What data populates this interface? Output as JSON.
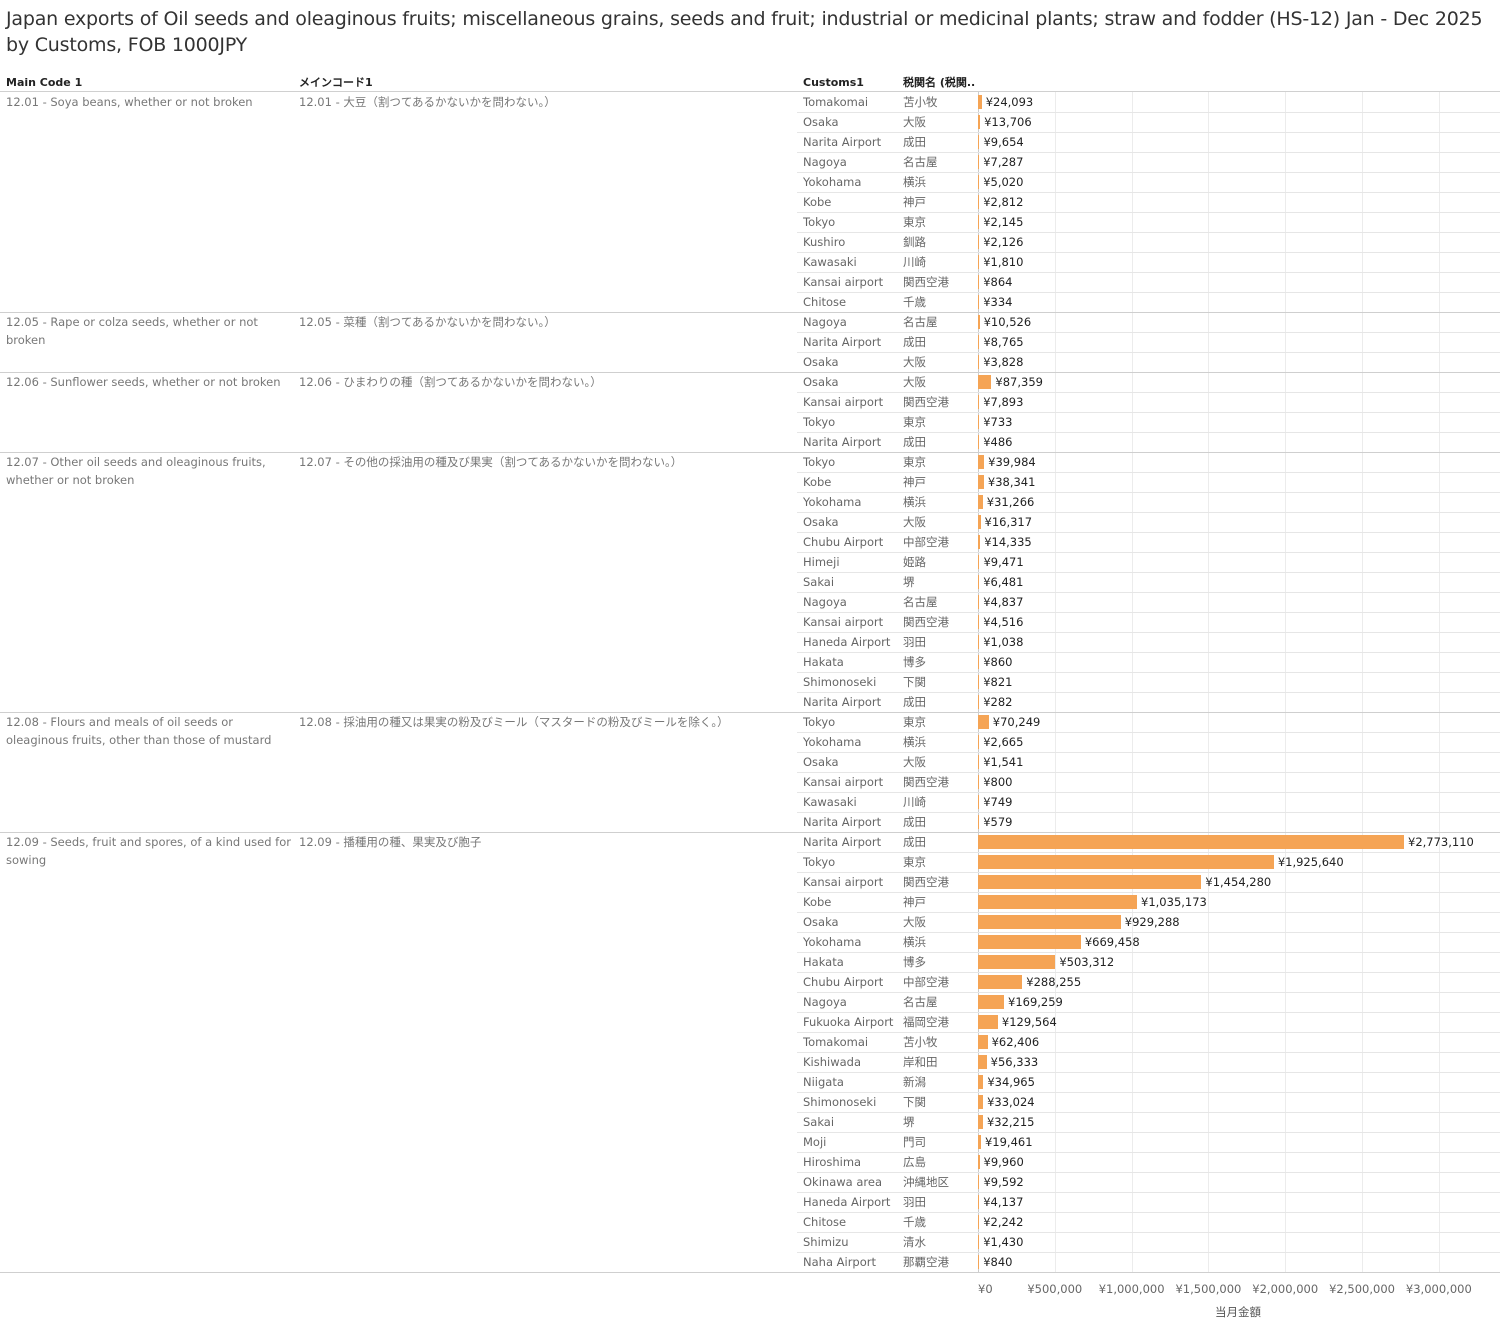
{
  "title": "Japan exports of Oil seeds and oleaginous fruits; miscellaneous grains, seeds and fruit; industrial or medicinal plants; straw and fodder (HS-12) Jan - Dec 2025\nby Customs, FOB 1000JPY",
  "headers": {
    "main_code": "Main Code 1",
    "main_code_jp": "メインコード1",
    "customs": "Customs1",
    "customs_jp": "税関名 (税関.."
  },
  "chart_data": {
    "type": "bar",
    "orientation": "horizontal",
    "xlabel": "当月金額",
    "xlim": [
      0,
      3250000
    ],
    "xticks": [
      0,
      500000,
      1000000,
      1500000,
      2000000,
      2500000,
      3000000
    ],
    "xtick_labels": [
      "¥0",
      "¥500,000",
      "¥1,000,000",
      "¥1,500,000",
      "¥2,000,000",
      "¥2,500,000",
      "¥3,000,000"
    ],
    "bar_color": "#f5a455",
    "groups": [
      {
        "code": "12.01 - Soya beans, whether or not broken",
        "code_jp": "12.01 - 大豆（割つてあるかないかを問わない。）",
        "rows": [
          {
            "customs": "Tomakomai",
            "customs_jp": "苫小牧",
            "value": 24093,
            "label": "¥24,093"
          },
          {
            "customs": "Osaka",
            "customs_jp": "大阪",
            "value": 13706,
            "label": "¥13,706"
          },
          {
            "customs": "Narita Airport",
            "customs_jp": "成田",
            "value": 9654,
            "label": "¥9,654"
          },
          {
            "customs": "Nagoya",
            "customs_jp": "名古屋",
            "value": 7287,
            "label": "¥7,287"
          },
          {
            "customs": "Yokohama",
            "customs_jp": "横浜",
            "value": 5020,
            "label": "¥5,020"
          },
          {
            "customs": "Kobe",
            "customs_jp": "神戸",
            "value": 2812,
            "label": "¥2,812"
          },
          {
            "customs": "Tokyo",
            "customs_jp": "東京",
            "value": 2145,
            "label": "¥2,145"
          },
          {
            "customs": "Kushiro",
            "customs_jp": "釧路",
            "value": 2126,
            "label": "¥2,126"
          },
          {
            "customs": "Kawasaki",
            "customs_jp": "川崎",
            "value": 1810,
            "label": "¥1,810"
          },
          {
            "customs": "Kansai airport",
            "customs_jp": "関西空港",
            "value": 864,
            "label": "¥864"
          },
          {
            "customs": "Chitose",
            "customs_jp": "千歳",
            "value": 334,
            "label": "¥334"
          }
        ]
      },
      {
        "code": "12.05 - Rape or colza seeds, whether or not broken",
        "code_jp": "12.05 - 菜種（割つてあるかないかを問わない。）",
        "rows": [
          {
            "customs": "Nagoya",
            "customs_jp": "名古屋",
            "value": 10526,
            "label": "¥10,526"
          },
          {
            "customs": "Narita Airport",
            "customs_jp": "成田",
            "value": 8765,
            "label": "¥8,765"
          },
          {
            "customs": "Osaka",
            "customs_jp": "大阪",
            "value": 3828,
            "label": "¥3,828"
          }
        ]
      },
      {
        "code": "12.06 - Sunflower seeds, whether or not broken",
        "code_jp": "12.06 - ひまわりの種（割つてあるかないかを問わない。）",
        "rows": [
          {
            "customs": "Osaka",
            "customs_jp": "大阪",
            "value": 87359,
            "label": "¥87,359"
          },
          {
            "customs": "Kansai airport",
            "customs_jp": "関西空港",
            "value": 7893,
            "label": "¥7,893"
          },
          {
            "customs": "Tokyo",
            "customs_jp": "東京",
            "value": 733,
            "label": "¥733"
          },
          {
            "customs": "Narita Airport",
            "customs_jp": "成田",
            "value": 486,
            "label": "¥486"
          }
        ]
      },
      {
        "code": "12.07 - Other oil seeds and oleaginous fruits, whether or not broken",
        "code_jp": "12.07 - その他の採油用の種及び果実（割つてあるかないかを問わない。）",
        "rows": [
          {
            "customs": "Tokyo",
            "customs_jp": "東京",
            "value": 39984,
            "label": "¥39,984"
          },
          {
            "customs": "Kobe",
            "customs_jp": "神戸",
            "value": 38341,
            "label": "¥38,341"
          },
          {
            "customs": "Yokohama",
            "customs_jp": "横浜",
            "value": 31266,
            "label": "¥31,266"
          },
          {
            "customs": "Osaka",
            "customs_jp": "大阪",
            "value": 16317,
            "label": "¥16,317"
          },
          {
            "customs": "Chubu Airport",
            "customs_jp": "中部空港",
            "value": 14335,
            "label": "¥14,335"
          },
          {
            "customs": "Himeji",
            "customs_jp": "姫路",
            "value": 9471,
            "label": "¥9,471"
          },
          {
            "customs": "Sakai",
            "customs_jp": "堺",
            "value": 6481,
            "label": "¥6,481"
          },
          {
            "customs": "Nagoya",
            "customs_jp": "名古屋",
            "value": 4837,
            "label": "¥4,837"
          },
          {
            "customs": "Kansai airport",
            "customs_jp": "関西空港",
            "value": 4516,
            "label": "¥4,516"
          },
          {
            "customs": "Haneda Airport",
            "customs_jp": "羽田",
            "value": 1038,
            "label": "¥1,038"
          },
          {
            "customs": "Hakata",
            "customs_jp": "博多",
            "value": 860,
            "label": "¥860"
          },
          {
            "customs": "Shimonoseki",
            "customs_jp": "下関",
            "value": 821,
            "label": "¥821"
          },
          {
            "customs": "Narita Airport",
            "customs_jp": "成田",
            "value": 282,
            "label": "¥282"
          }
        ]
      },
      {
        "code": "12.08 - Flours and meals of oil seeds or oleaginous fruits, other than those of mustard",
        "code_jp": "12.08 - 採油用の種又は果実の粉及びミール（マスタードの粉及びミールを除く。）",
        "rows": [
          {
            "customs": "Tokyo",
            "customs_jp": "東京",
            "value": 70249,
            "label": "¥70,249"
          },
          {
            "customs": "Yokohama",
            "customs_jp": "横浜",
            "value": 2665,
            "label": "¥2,665"
          },
          {
            "customs": "Osaka",
            "customs_jp": "大阪",
            "value": 1541,
            "label": "¥1,541"
          },
          {
            "customs": "Kansai airport",
            "customs_jp": "関西空港",
            "value": 800,
            "label": "¥800"
          },
          {
            "customs": "Kawasaki",
            "customs_jp": "川崎",
            "value": 749,
            "label": "¥749"
          },
          {
            "customs": "Narita Airport",
            "customs_jp": "成田",
            "value": 579,
            "label": "¥579"
          }
        ]
      },
      {
        "code": "12.09 - Seeds, fruit and spores, of a kind used for sowing",
        "code_jp": "12.09 - 播種用の種、果実及び胞子",
        "rows": [
          {
            "customs": "Narita Airport",
            "customs_jp": "成田",
            "value": 2773110,
            "label": "¥2,773,110"
          },
          {
            "customs": "Tokyo",
            "customs_jp": "東京",
            "value": 1925640,
            "label": "¥1,925,640"
          },
          {
            "customs": "Kansai airport",
            "customs_jp": "関西空港",
            "value": 1454280,
            "label": "¥1,454,280"
          },
          {
            "customs": "Kobe",
            "customs_jp": "神戸",
            "value": 1035173,
            "label": "¥1,035,173"
          },
          {
            "customs": "Osaka",
            "customs_jp": "大阪",
            "value": 929288,
            "label": "¥929,288"
          },
          {
            "customs": "Yokohama",
            "customs_jp": "横浜",
            "value": 669458,
            "label": "¥669,458"
          },
          {
            "customs": "Hakata",
            "customs_jp": "博多",
            "value": 503312,
            "label": "¥503,312"
          },
          {
            "customs": "Chubu Airport",
            "customs_jp": "中部空港",
            "value": 288255,
            "label": "¥288,255"
          },
          {
            "customs": "Nagoya",
            "customs_jp": "名古屋",
            "value": 169259,
            "label": "¥169,259"
          },
          {
            "customs": "Fukuoka Airport",
            "customs_jp": "福岡空港",
            "value": 129564,
            "label": "¥129,564"
          },
          {
            "customs": "Tomakomai",
            "customs_jp": "苫小牧",
            "value": 62406,
            "label": "¥62,406"
          },
          {
            "customs": "Kishiwada",
            "customs_jp": "岸和田",
            "value": 56333,
            "label": "¥56,333"
          },
          {
            "customs": "Niigata",
            "customs_jp": "新潟",
            "value": 34965,
            "label": "¥34,965"
          },
          {
            "customs": "Shimonoseki",
            "customs_jp": "下関",
            "value": 33024,
            "label": "¥33,024"
          },
          {
            "customs": "Sakai",
            "customs_jp": "堺",
            "value": 32215,
            "label": "¥32,215"
          },
          {
            "customs": "Moji",
            "customs_jp": "門司",
            "value": 19461,
            "label": "¥19,461"
          },
          {
            "customs": "Hiroshima",
            "customs_jp": "広島",
            "value": 9960,
            "label": "¥9,960"
          },
          {
            "customs": "Okinawa area",
            "customs_jp": "沖縄地区",
            "value": 9592,
            "label": "¥9,592"
          },
          {
            "customs": "Haneda Airport",
            "customs_jp": "羽田",
            "value": 4137,
            "label": "¥4,137"
          },
          {
            "customs": "Chitose",
            "customs_jp": "千歳",
            "value": 2242,
            "label": "¥2,242"
          },
          {
            "customs": "Shimizu",
            "customs_jp": "清水",
            "value": 1430,
            "label": "¥1,430"
          },
          {
            "customs": "Naha Airport",
            "customs_jp": "那覇空港",
            "value": 840,
            "label": "¥840"
          }
        ]
      }
    ]
  }
}
